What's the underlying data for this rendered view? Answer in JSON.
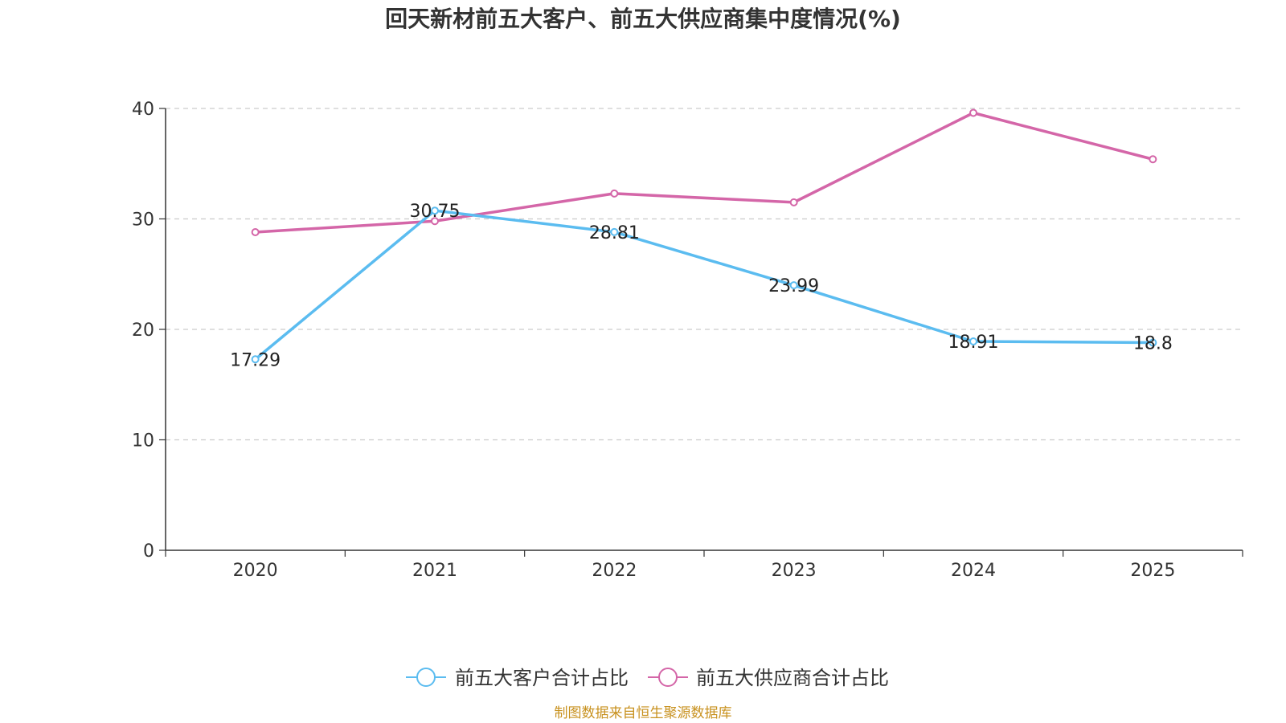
{
  "chart_data": {
    "type": "line",
    "title": "回天新材前五大客户、前五大供应商集中度情况(%)",
    "xlabel": "",
    "ylabel": "",
    "categories": [
      "2020",
      "2021",
      "2022",
      "2023",
      "2024",
      "2025"
    ],
    "ylim": [
      0,
      40
    ],
    "yticks": [
      0,
      10,
      20,
      30,
      40
    ],
    "grid": true,
    "legend_position": "bottom",
    "series": [
      {
        "name": "前五大客户合计占比",
        "color": "#5bbcf0",
        "values": [
          17.29,
          30.75,
          28.81,
          23.99,
          18.91,
          18.8
        ],
        "labels": [
          "17.29",
          "30.75",
          "28.81",
          "23.99",
          "18.91",
          "18.8"
        ],
        "show_labels": true
      },
      {
        "name": "前五大供应商合计占比",
        "color": "#d466a8",
        "values": [
          28.8,
          29.8,
          32.3,
          31.5,
          39.6,
          35.4
        ],
        "show_labels": false
      }
    ],
    "source": "制图数据来自恒生聚源数据库"
  }
}
